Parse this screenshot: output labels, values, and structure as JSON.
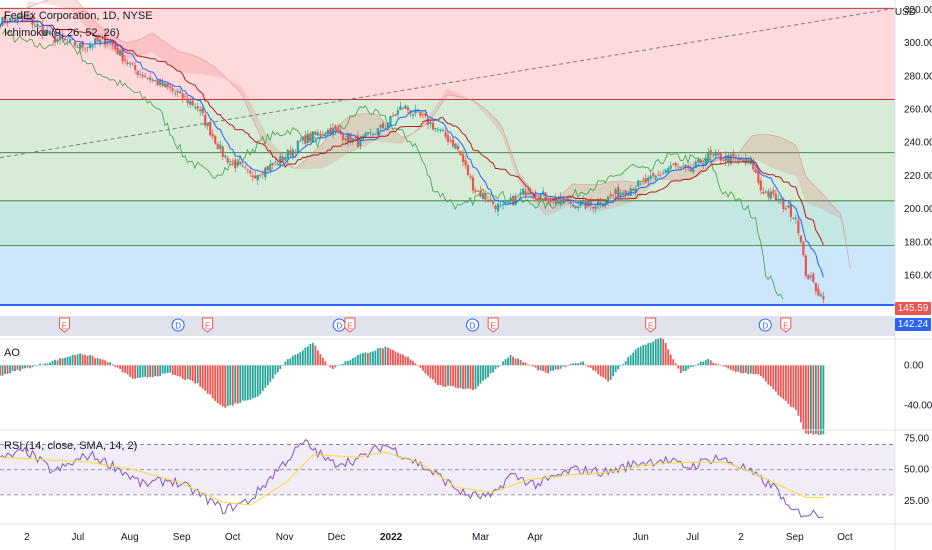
{
  "header": {
    "symbol_title": "FedEx Corporation, 1D, NYSE",
    "ichimoku_label": "Ichimoku (9, 26, 52, 26)",
    "ao_label": "AO",
    "rsi_label": "RSI (14, close, SMA, 14, 2)",
    "currency": "USD"
  },
  "price_tags": {
    "last": "145.59",
    "blue_line": "142.24"
  },
  "colors": {
    "up": "#26a69a",
    "down": "#ef5350",
    "tenkan": "#2962ff",
    "kijun": "#b71c1c",
    "lagging": "#43a047",
    "rsi": "#7e57c2",
    "rsi_ma": "#fdd835",
    "zone_red": "#ffcdd2",
    "zone_green": "#c8e6c9",
    "zone_teal": "#b2dfdb",
    "zone_blue": "#bbdefb"
  },
  "chart_data": [
    {
      "type": "candlestick",
      "title": "FedEx Corporation, 1D, NYSE",
      "ylim": [
        138,
        326
      ],
      "y_ticks": [
        "320.00",
        "300.00",
        "280.00",
        "260.00",
        "240.00",
        "220.00",
        "200.00",
        "180.00",
        "160.00"
      ],
      "x_ticks": [
        "2",
        "Jul",
        "Aug",
        "Sep",
        "Oct",
        "Nov",
        "Dec",
        "2022",
        "Mar",
        "Apr",
        "Jun",
        "Jul",
        "2",
        "Sep",
        "Oct"
      ],
      "horizontal_levels": [
        321,
        266,
        234,
        205,
        178,
        142.24
      ],
      "zones": [
        {
          "from": 266,
          "to": 321,
          "color": "red"
        },
        {
          "from": 205,
          "to": 266,
          "color": "green"
        },
        {
          "from": 178,
          "to": 205,
          "color": "teal"
        },
        {
          "from": 142.24,
          "to": 178,
          "color": "blue"
        }
      ],
      "trendline": {
        "from": [
          0,
          231
        ],
        "to": [
          1,
          321
        ]
      },
      "close_anchors": [
        [
          0,
          313
        ],
        [
          0.03,
          315
        ],
        [
          0.06,
          303
        ],
        [
          0.09,
          298
        ],
        [
          0.12,
          302
        ],
        [
          0.15,
          284
        ],
        [
          0.19,
          272
        ],
        [
          0.22,
          262
        ],
        [
          0.25,
          232
        ],
        [
          0.28,
          220
        ],
        [
          0.31,
          228
        ],
        [
          0.34,
          242
        ],
        [
          0.37,
          248
        ],
        [
          0.4,
          240
        ],
        [
          0.43,
          250
        ],
        [
          0.45,
          262
        ],
        [
          0.48,
          252
        ],
        [
          0.51,
          238
        ],
        [
          0.53,
          212
        ],
        [
          0.56,
          200
        ],
        [
          0.59,
          212
        ],
        [
          0.62,
          205
        ],
        [
          0.66,
          202
        ],
        [
          0.7,
          212
        ],
        [
          0.73,
          218
        ],
        [
          0.75,
          226
        ],
        [
          0.77,
          222
        ],
        [
          0.79,
          232
        ],
        [
          0.82,
          230
        ],
        [
          0.84,
          228
        ],
        [
          0.85,
          212
        ],
        [
          0.87,
          205
        ],
        [
          0.89,
          195
        ],
        [
          0.9,
          162
        ],
        [
          0.92,
          145.59
        ]
      ],
      "last_value": 145.59,
      "events": [
        {
          "x": 0.072,
          "label": "E"
        },
        {
          "x": 0.199,
          "label": "D"
        },
        {
          "x": 0.232,
          "label": "E"
        },
        {
          "x": 0.379,
          "label": "D"
        },
        {
          "x": 0.391,
          "label": "E"
        },
        {
          "x": 0.528,
          "label": "D"
        },
        {
          "x": 0.551,
          "label": "E"
        },
        {
          "x": 0.727,
          "label": "E"
        },
        {
          "x": 0.855,
          "label": "D"
        },
        {
          "x": 0.878,
          "label": "E"
        }
      ]
    },
    {
      "type": "bar",
      "title": "AO",
      "ylim": [
        -62,
        25
      ],
      "y_ticks": [
        "0.00",
        "-40.00"
      ],
      "anchors": [
        [
          0,
          -10
        ],
        [
          0.05,
          2
        ],
        [
          0.09,
          12
        ],
        [
          0.12,
          4
        ],
        [
          0.15,
          -14
        ],
        [
          0.19,
          -8
        ],
        [
          0.22,
          -18
        ],
        [
          0.25,
          -42
        ],
        [
          0.29,
          -30
        ],
        [
          0.32,
          5
        ],
        [
          0.35,
          22
        ],
        [
          0.37,
          -4
        ],
        [
          0.4,
          10
        ],
        [
          0.43,
          18
        ],
        [
          0.46,
          6
        ],
        [
          0.49,
          -20
        ],
        [
          0.53,
          -24
        ],
        [
          0.57,
          10
        ],
        [
          0.61,
          -8
        ],
        [
          0.65,
          4
        ],
        [
          0.68,
          -16
        ],
        [
          0.71,
          16
        ],
        [
          0.74,
          28
        ],
        [
          0.76,
          -8
        ],
        [
          0.79,
          6
        ],
        [
          0.82,
          -6
        ],
        [
          0.85,
          -10
        ],
        [
          0.87,
          -30
        ],
        [
          0.89,
          -45
        ],
        [
          0.9,
          -68
        ]
      ]
    },
    {
      "type": "line",
      "title": "RSI (14, close, SMA, 14, 2)",
      "ylim": [
        10,
        80
      ],
      "y_ticks": [
        "75.00",
        "50.00",
        "25.00"
      ],
      "band": [
        30,
        70
      ],
      "series": [
        {
          "name": "RSI",
          "anchors": [
            [
              0,
              58
            ],
            [
              0.03,
              65
            ],
            [
              0.06,
              48
            ],
            [
              0.1,
              62
            ],
            [
              0.13,
              52
            ],
            [
              0.16,
              38
            ],
            [
              0.19,
              42
            ],
            [
              0.22,
              32
            ],
            [
              0.25,
              18
            ],
            [
              0.28,
              26
            ],
            [
              0.31,
              50
            ],
            [
              0.34,
              72
            ],
            [
              0.37,
              55
            ],
            [
              0.4,
              58
            ],
            [
              0.43,
              70
            ],
            [
              0.46,
              58
            ],
            [
              0.49,
              45
            ],
            [
              0.52,
              30
            ],
            [
              0.55,
              28
            ],
            [
              0.57,
              46
            ],
            [
              0.6,
              38
            ],
            [
              0.64,
              50
            ],
            [
              0.68,
              48
            ],
            [
              0.71,
              55
            ],
            [
              0.74,
              58
            ],
            [
              0.77,
              52
            ],
            [
              0.8,
              60
            ],
            [
              0.83,
              52
            ],
            [
              0.85,
              42
            ],
            [
              0.87,
              34
            ],
            [
              0.88,
              18
            ],
            [
              0.9,
              15
            ]
          ]
        },
        {
          "name": "RSI-based MA",
          "anchors": [
            [
              0,
              60
            ],
            [
              0.05,
              58
            ],
            [
              0.1,
              56
            ],
            [
              0.15,
              50
            ],
            [
              0.2,
              40
            ],
            [
              0.25,
              24
            ],
            [
              0.28,
              22
            ],
            [
              0.32,
              40
            ],
            [
              0.35,
              62
            ],
            [
              0.4,
              60
            ],
            [
              0.43,
              64
            ],
            [
              0.47,
              55
            ],
            [
              0.51,
              36
            ],
            [
              0.55,
              32
            ],
            [
              0.59,
              42
            ],
            [
              0.64,
              46
            ],
            [
              0.68,
              48
            ],
            [
              0.72,
              54
            ],
            [
              0.77,
              56
            ],
            [
              0.81,
              56
            ],
            [
              0.84,
              48
            ],
            [
              0.87,
              38
            ],
            [
              0.9,
              28
            ]
          ]
        }
      ]
    }
  ]
}
